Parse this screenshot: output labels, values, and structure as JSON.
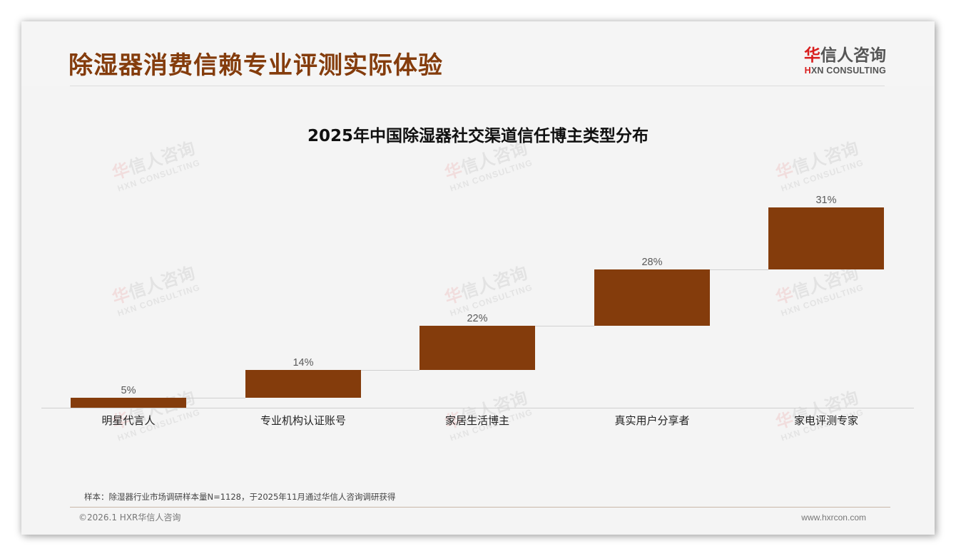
{
  "header": {
    "title": "除湿器消费信赖专业评测实际体验",
    "logo_cn_first": "华",
    "logo_cn_rest": "信人咨询",
    "logo_en_first": "H",
    "logo_en_rest": "XN CONSULTING"
  },
  "watermark": {
    "cn_first": "华",
    "cn_rest": "信人咨询",
    "en": "HXN CONSULTING"
  },
  "colors": {
    "title": "#843c0c",
    "bar": "#843c0c",
    "logo_accent": "#d81e1e",
    "background": "#f4f4f4"
  },
  "chart_data": {
    "type": "bar",
    "subtype": "waterfall-floating",
    "title": "2025年中国除湿器社交渠道信任博主类型分布",
    "categories": [
      "明星代言人",
      "专业机构认证账号",
      "家居生活博主",
      "真实用户分享者",
      "家电评测专家"
    ],
    "values": [
      5,
      14,
      22,
      28,
      31
    ],
    "value_labels": [
      "5%",
      "14%",
      "22%",
      "28%",
      "31%"
    ],
    "unit": "%",
    "xlabel": "",
    "ylabel": "",
    "grid": false,
    "legend": "none",
    "bar_color": "#843c0c"
  },
  "footer": {
    "note": "样本：除湿器行业市场调研样本量N=1128，于2025年11月通过华信人咨询调研获得",
    "copyright": "©2026.1 HXR华信人咨询",
    "website": "www.hxrcon.com"
  }
}
